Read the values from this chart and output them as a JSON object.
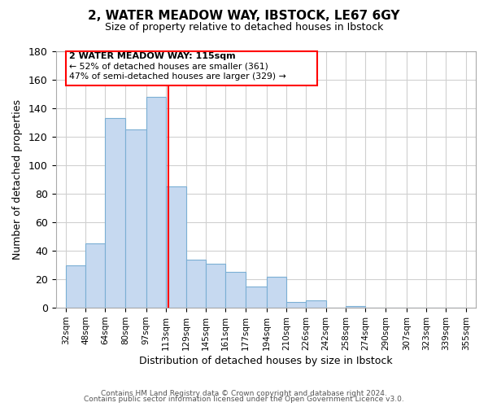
{
  "title": "2, WATER MEADOW WAY, IBSTOCK, LE67 6GY",
  "subtitle": "Size of property relative to detached houses in Ibstock",
  "xlabel": "Distribution of detached houses by size in Ibstock",
  "ylabel": "Number of detached properties",
  "bar_left_edges": [
    32,
    48,
    64,
    80,
    97,
    113,
    129,
    145,
    161,
    177,
    194,
    210,
    226,
    242,
    258,
    274,
    290,
    307,
    323,
    339
  ],
  "bar_heights": [
    30,
    45,
    133,
    125,
    148,
    85,
    34,
    31,
    25,
    15,
    22,
    4,
    5,
    0,
    1,
    0,
    0,
    0,
    0,
    0
  ],
  "bar_widths": [
    16,
    16,
    16,
    17,
    16,
    16,
    16,
    16,
    16,
    17,
    16,
    16,
    16,
    16,
    16,
    16,
    17,
    16,
    16,
    16
  ],
  "bar_color": "#c6d9f0",
  "bar_edgecolor": "#7bafd4",
  "vline_x": 115,
  "vline_color": "red",
  "xtick_labels": [
    "32sqm",
    "48sqm",
    "64sqm",
    "80sqm",
    "97sqm",
    "113sqm",
    "129sqm",
    "145sqm",
    "161sqm",
    "177sqm",
    "194sqm",
    "210sqm",
    "226sqm",
    "242sqm",
    "258sqm",
    "274sqm",
    "290sqm",
    "307sqm",
    "323sqm",
    "339sqm",
    "355sqm"
  ],
  "xtick_positions": [
    32,
    48,
    64,
    80,
    97,
    113,
    129,
    145,
    161,
    177,
    194,
    210,
    226,
    242,
    258,
    274,
    290,
    307,
    323,
    339,
    355
  ],
  "ylim": [
    0,
    180
  ],
  "yticks": [
    0,
    20,
    40,
    60,
    80,
    100,
    120,
    140,
    160,
    180
  ],
  "xlim": [
    24,
    363
  ],
  "annotation_title": "2 WATER MEADOW WAY: 115sqm",
  "annotation_line1": "← 52% of detached houses are smaller (361)",
  "annotation_line2": "47% of semi-detached houses are larger (329) →",
  "annotation_box_color": "red",
  "footer1": "Contains HM Land Registry data © Crown copyright and database right 2024.",
  "footer2": "Contains public sector information licensed under the Open Government Licence v3.0.",
  "background_color": "#ffffff",
  "grid_color": "#d0d0d0"
}
